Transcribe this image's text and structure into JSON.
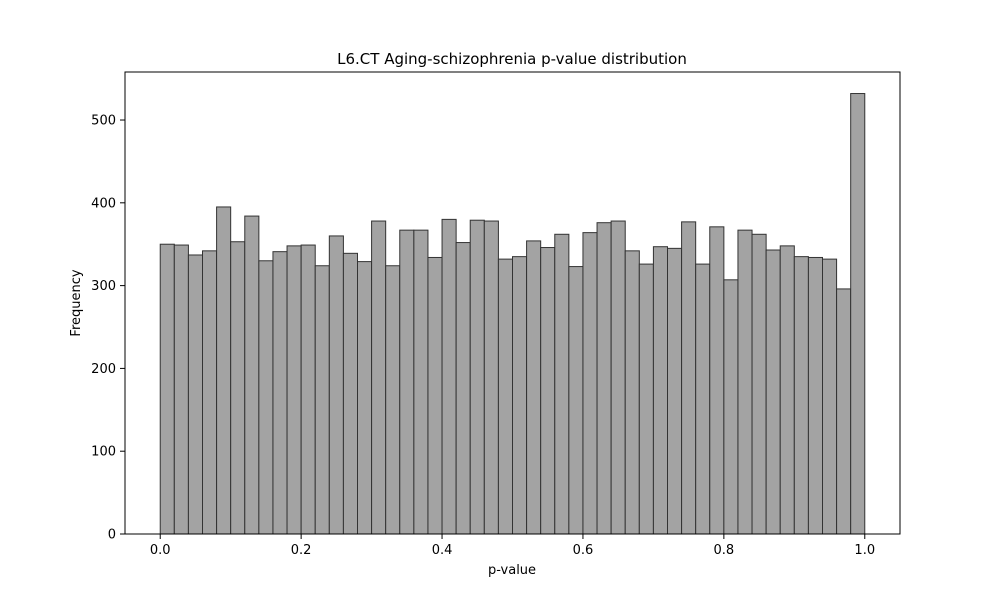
{
  "chart_data": {
    "type": "bar",
    "title": "L6.CT Aging-schizophrenia p-value distribution",
    "xlabel": "p-value",
    "ylabel": "Frequency",
    "xlim": [
      -0.05,
      1.05
    ],
    "ylim": [
      0,
      558
    ],
    "x_ticks": [
      "0.0",
      "0.2",
      "0.4",
      "0.6",
      "0.8",
      "1.0"
    ],
    "y_ticks": [
      "0",
      "100",
      "200",
      "300",
      "400",
      "500"
    ],
    "bin_width": 0.02,
    "bin_starts": [
      0.0,
      0.02,
      0.04,
      0.06,
      0.08,
      0.1,
      0.12,
      0.14,
      0.16,
      0.18,
      0.2,
      0.22,
      0.24,
      0.26,
      0.28,
      0.3,
      0.32,
      0.34,
      0.36,
      0.38,
      0.4,
      0.42,
      0.44,
      0.46,
      0.48,
      0.5,
      0.52,
      0.54,
      0.56,
      0.58,
      0.6,
      0.62,
      0.64,
      0.66,
      0.68,
      0.7,
      0.72,
      0.74,
      0.76,
      0.78,
      0.8,
      0.82,
      0.84,
      0.86,
      0.88,
      0.9,
      0.92,
      0.94,
      0.96,
      0.98
    ],
    "values": [
      350,
      349,
      337,
      342,
      395,
      353,
      384,
      330,
      341,
      348,
      349,
      324,
      360,
      339,
      329,
      378,
      324,
      367,
      367,
      334,
      380,
      352,
      379,
      378,
      332,
      335,
      354,
      346,
      362,
      323,
      364,
      376,
      378,
      342,
      326,
      347,
      345,
      377,
      326,
      371,
      307,
      367,
      362,
      343,
      348,
      335,
      334,
      332,
      296,
      532
    ],
    "grid": false,
    "colors": {
      "bar_fill": "#a3a3a3",
      "bar_edge": "#333333",
      "axis": "#000000"
    }
  }
}
